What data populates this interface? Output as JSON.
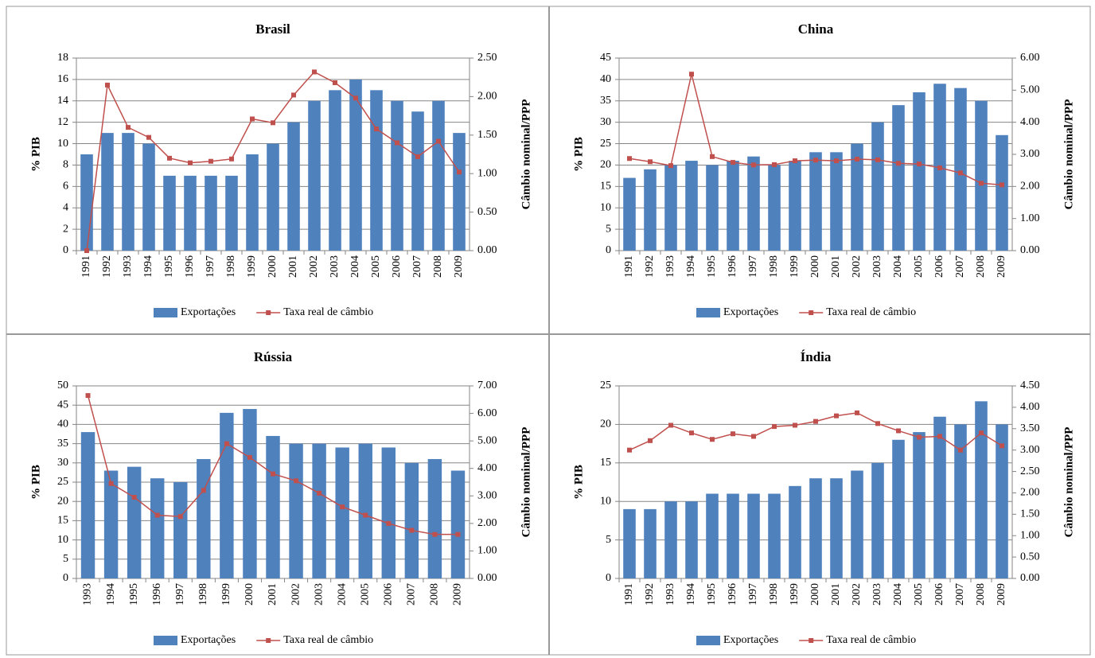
{
  "chart_data": [
    {
      "type": "bar",
      "title": "Brasil",
      "y_label": "% PIB",
      "y2_label": "Câmbio  nominal/PPP",
      "legend": "bottom",
      "categories": [
        "1991",
        "1992",
        "1993",
        "1994",
        "1995",
        "1996",
        "1997",
        "1998",
        "1999",
        "2000",
        "2001",
        "2002",
        "2003",
        "2004",
        "2005",
        "2006",
        "2007",
        "2008",
        "2009"
      ],
      "series": [
        {
          "name": "Exportações",
          "type": "bar",
          "color": "#4f81bd",
          "values": [
            9,
            11,
            11,
            10,
            7,
            7,
            7,
            7,
            9,
            10,
            12,
            14,
            15,
            16,
            15,
            14,
            13,
            14,
            11
          ]
        },
        {
          "name": "Taxa real de câmbio",
          "type": "line",
          "axis": "y2",
          "color": "#c0504d",
          "values": [
            0.0,
            2.15,
            1.6,
            1.47,
            1.2,
            1.14,
            1.16,
            1.19,
            1.71,
            1.66,
            2.02,
            2.32,
            2.18,
            1.98,
            1.58,
            1.4,
            1.22,
            1.42,
            1.02
          ]
        }
      ],
      "ylim": [
        0,
        18
      ],
      "yticks": [
        0,
        2,
        4,
        6,
        8,
        10,
        12,
        14,
        16,
        18
      ],
      "y2lim": [
        0,
        2.5
      ],
      "y2ticks": [
        {
          "value": 0,
          "label": "0.00"
        },
        {
          "value": 0.5,
          "label": "0.50"
        },
        {
          "value": 1,
          "label": "1.00"
        },
        {
          "value": 1.5,
          "label": "1.50"
        },
        {
          "value": 2,
          "label": "2.00"
        },
        {
          "value": 2.5,
          "label": "2.50"
        }
      ]
    },
    {
      "type": "bar",
      "title": "China",
      "y_label": "% PIB",
      "y2_label": "Câmbio  nominal/PPP",
      "legend": "bottom",
      "categories": [
        "1991",
        "1992",
        "1993",
        "1994",
        "1995",
        "1996",
        "1997",
        "1998",
        "1999",
        "2000",
        "2001",
        "2002",
        "2003",
        "2004",
        "2005",
        "2006",
        "2007",
        "2008",
        "2009"
      ],
      "series": [
        {
          "name": "Exportações",
          "type": "bar",
          "color": "#4f81bd",
          "values": [
            17,
            19,
            20,
            21,
            20,
            21,
            22,
            20,
            21,
            23,
            23,
            25,
            30,
            34,
            37,
            39,
            38,
            35,
            27
          ]
        },
        {
          "name": "Taxa real de câmbio",
          "type": "line",
          "axis": "y2",
          "color": "#c0504d",
          "values": [
            2.87,
            2.77,
            2.65,
            5.5,
            2.93,
            2.75,
            2.67,
            2.68,
            2.8,
            2.82,
            2.8,
            2.85,
            2.83,
            2.72,
            2.7,
            2.58,
            2.42,
            2.1,
            2.05
          ]
        }
      ],
      "ylim": [
        0,
        45
      ],
      "yticks": [
        0,
        5,
        10,
        15,
        20,
        25,
        30,
        35,
        40,
        45
      ],
      "y2lim": [
        0,
        6
      ],
      "y2ticks": [
        {
          "value": 0,
          "label": "0.00"
        },
        {
          "value": 1,
          "label": "1.00"
        },
        {
          "value": 2,
          "label": "2.00"
        },
        {
          "value": 3,
          "label": "3.00"
        },
        {
          "value": 4,
          "label": "4.00"
        },
        {
          "value": 5,
          "label": "5.00"
        },
        {
          "value": 6,
          "label": "6.00"
        }
      ]
    },
    {
      "type": "bar",
      "title": "Rússia",
      "y_label": "% PIB",
      "y2_label": "Câmbio  nominal/PPP",
      "legend": "bottom",
      "categories": [
        "1993",
        "1994",
        "1995",
        "1996",
        "1997",
        "1998",
        "1999",
        "2000",
        "2001",
        "2002",
        "2003",
        "2004",
        "2005",
        "2006",
        "2007",
        "2008",
        "2009"
      ],
      "series": [
        {
          "name": "Exportações",
          "type": "bar",
          "color": "#4f81bd",
          "values": [
            38,
            28,
            29,
            26,
            25,
            31,
            43,
            44,
            37,
            35,
            35,
            34,
            35,
            34,
            30,
            31,
            28
          ]
        },
        {
          "name": "Taxa real de câmbio",
          "type": "line",
          "axis": "y2",
          "color": "#c0504d",
          "values": [
            6.65,
            3.45,
            2.95,
            2.3,
            2.25,
            3.2,
            4.9,
            4.4,
            3.8,
            3.55,
            3.1,
            2.6,
            2.3,
            2.0,
            1.75,
            1.6,
            1.6
          ]
        }
      ],
      "ylim": [
        0,
        50
      ],
      "yticks": [
        0,
        5,
        10,
        15,
        20,
        25,
        30,
        35,
        40,
        45,
        50
      ],
      "y2lim": [
        0,
        7
      ],
      "y2ticks": [
        {
          "value": 0,
          "label": "0.00"
        },
        {
          "value": 1,
          "label": "1.00"
        },
        {
          "value": 2,
          "label": "2.00"
        },
        {
          "value": 3,
          "label": "3.00"
        },
        {
          "value": 4,
          "label": "4.00"
        },
        {
          "value": 5,
          "label": "5.00"
        },
        {
          "value": 6,
          "label": "6.00"
        },
        {
          "value": 7,
          "label": "7.00"
        }
      ]
    },
    {
      "type": "bar",
      "title": "Índia",
      "y_label": "% PIB",
      "y2_label": "Câmbio  nominal/PPP",
      "legend": "bottom",
      "categories": [
        "1991",
        "1992",
        "1993",
        "1994",
        "1995",
        "1996",
        "1997",
        "1998",
        "1999",
        "2000",
        "2001",
        "2002",
        "2003",
        "2004",
        "2005",
        "2006",
        "2007",
        "2008",
        "2009"
      ],
      "series": [
        {
          "name": "Exportações",
          "type": "bar",
          "color": "#4f81bd",
          "values": [
            9,
            9,
            10,
            10,
            11,
            11,
            11,
            11,
            12,
            13,
            13,
            14,
            15,
            18,
            19,
            21,
            20,
            23,
            20
          ]
        },
        {
          "name": "Taxa real de câmbio",
          "type": "line",
          "axis": "y2",
          "color": "#c0504d",
          "values": [
            3.0,
            3.22,
            3.58,
            3.4,
            3.25,
            3.38,
            3.32,
            3.55,
            3.58,
            3.67,
            3.8,
            3.87,
            3.62,
            3.45,
            3.3,
            3.32,
            3.0,
            3.4,
            3.1
          ]
        }
      ],
      "ylim": [
        0,
        25
      ],
      "yticks": [
        0,
        5,
        10,
        15,
        20,
        25
      ],
      "y2lim": [
        0,
        4.5
      ],
      "y2ticks": [
        {
          "value": 0,
          "label": "0.00"
        },
        {
          "value": 0.5,
          "label": "0.50"
        },
        {
          "value": 1,
          "label": "1.00"
        },
        {
          "value": 1.5,
          "label": "1.50"
        },
        {
          "value": 2,
          "label": "2.00"
        },
        {
          "value": 2.5,
          "label": "2.50"
        },
        {
          "value": 3,
          "label": "3.00"
        },
        {
          "value": 3.5,
          "label": "3.50"
        },
        {
          "value": 4,
          "label": "4.00"
        },
        {
          "value": 4.5,
          "label": "4.50"
        }
      ]
    }
  ]
}
